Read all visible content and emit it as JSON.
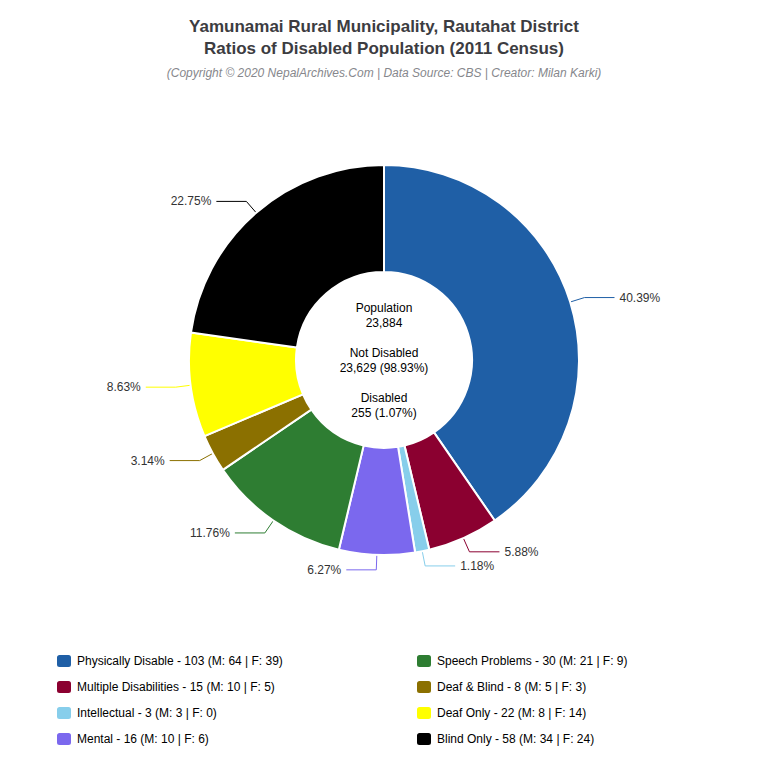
{
  "chart_data": {
    "type": "pie",
    "title": "Yamunamai Rural Municipality, Rautahat District\nRatios of Disabled Population (2011 Census)",
    "subtitle": "(Copyright © 2020 NepalArchives.Com | Data Source: CBS | Creator: Milan Karki)",
    "categories": [
      "Physically Disable - 103 (M: 64 | F: 39)",
      "Multiple Disabilities - 15 (M: 10 | F: 5)",
      "Intellectual - 3 (M: 3 | F: 0)",
      "Mental - 16 (M: 10 | F: 6)",
      "Speech Problems - 30 (M: 21 | F: 9)",
      "Deaf & Blind - 8 (M: 5 | F: 3)",
      "Deaf Only - 22 (M: 8 | F: 14)",
      "Blind Only - 58 (M: 34 | F: 24)"
    ],
    "values": [
      40.39,
      5.88,
      1.18,
      6.27,
      11.76,
      3.14,
      8.63,
      22.75
    ],
    "value_labels": [
      "40.39%",
      "5.88%",
      "1.18%",
      "6.27%",
      "11.76%",
      "3.14%",
      "8.63%",
      "22.75%"
    ],
    "colors": [
      "#1f5fa6",
      "#8b0030",
      "#87ceeb",
      "#7b68ee",
      "#2e7d32",
      "#8b7000",
      "#ffff00",
      "#000000"
    ],
    "data_labels": true,
    "legend": "bottom",
    "annotations": [
      "Population\n23,884\n\nNot Disabled\n23,629 (98.93%)\n\nDisabled\n255 (1.07%)"
    ]
  }
}
